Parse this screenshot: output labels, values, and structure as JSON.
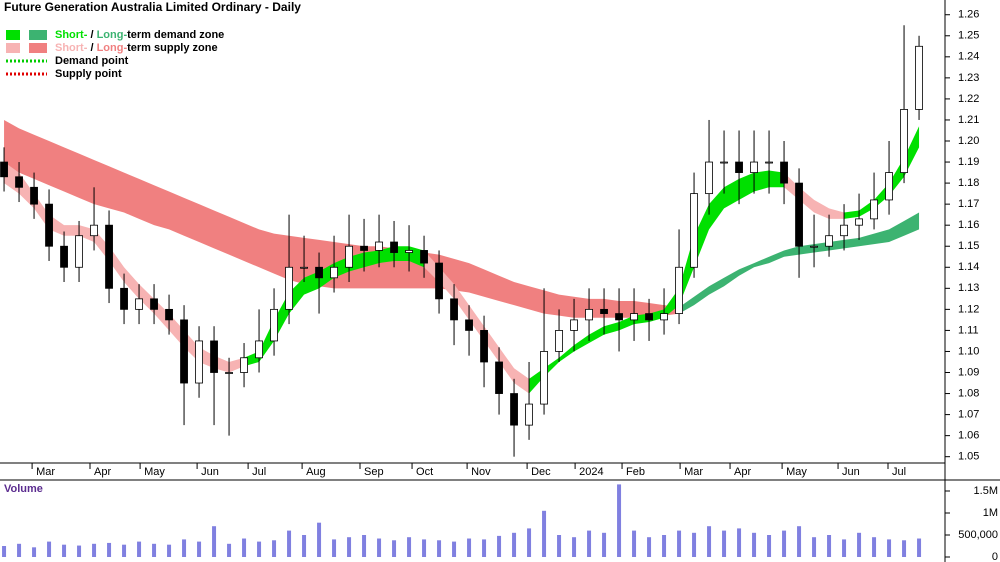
{
  "chart_data": {
    "type": "candlestick",
    "title": "Future Generation Australia Limited Ordinary - Daily",
    "volume_title": "Volume",
    "xlim": [
      -0.27,
      62.73
    ],
    "xticks": [
      {
        "value": 1.87,
        "label": "Mar"
      },
      {
        "value": 5.73,
        "label": "Apr"
      },
      {
        "value": 9.07,
        "label": "May"
      },
      {
        "value": 12.87,
        "label": "Jun"
      },
      {
        "value": 16.27,
        "label": "Jul"
      },
      {
        "value": 19.87,
        "label": "Aug"
      },
      {
        "value": 23.73,
        "label": "Sep"
      },
      {
        "value": 27.2,
        "label": "Oct"
      },
      {
        "value": 30.87,
        "label": "Nov"
      },
      {
        "value": 34.87,
        "label": "Dec"
      },
      {
        "value": 38.07,
        "label": "2024"
      },
      {
        "value": 41.2,
        "label": "Feb"
      },
      {
        "value": 45.07,
        "label": "Mar"
      },
      {
        "value": 48.4,
        "label": "Apr"
      },
      {
        "value": 51.87,
        "label": "May"
      },
      {
        "value": 55.6,
        "label": "Jun"
      },
      {
        "value": 58.93,
        "label": "Jul"
      }
    ],
    "ylim": [
      1.047,
      1.267
    ],
    "yticks": [
      1.05,
      1.06,
      1.07,
      1.08,
      1.09,
      {
        "value": 1.1,
        "label": "1.10"
      },
      1.11,
      1.12,
      1.13,
      1.14,
      1.15,
      1.16,
      1.17,
      1.18,
      1.19,
      {
        "value": 1.2,
        "label": "1.20"
      },
      1.21,
      1.22,
      1.23,
      1.24,
      1.25,
      1.26
    ],
    "up_color": "#ffffff",
    "down_color": "#000000",
    "open": [
      1.19,
      1.183,
      1.178,
      1.17,
      1.15,
      1.14,
      1.155,
      1.16,
      1.13,
      1.12,
      1.125,
      1.12,
      1.115,
      1.085,
      1.105,
      1.09,
      1.09,
      1.097,
      1.105,
      1.12,
      1.14,
      1.14,
      1.135,
      1.14,
      1.15,
      1.148,
      1.152,
      1.147,
      1.148,
      1.142,
      1.125,
      1.115,
      1.11,
      1.095,
      1.08,
      1.065,
      1.075,
      1.1,
      1.11,
      1.115,
      1.12,
      1.118,
      1.115,
      1.118,
      1.115,
      1.118,
      1.14,
      1.175,
      1.19,
      1.19,
      1.185,
      1.19,
      1.19,
      1.18,
      1.15,
      1.15,
      1.155,
      1.16,
      1.163,
      1.172,
      1.185,
      1.215
    ],
    "high": [
      1.197,
      1.19,
      1.185,
      1.177,
      1.157,
      1.162,
      1.178,
      1.167,
      1.137,
      1.132,
      1.132,
      1.127,
      1.122,
      1.112,
      1.112,
      1.097,
      1.104,
      1.12,
      1.13,
      1.165,
      1.155,
      1.147,
      1.155,
      1.165,
      1.163,
      1.165,
      1.162,
      1.16,
      1.155,
      1.148,
      1.132,
      1.122,
      1.117,
      1.102,
      1.087,
      1.095,
      1.13,
      1.12,
      1.125,
      1.13,
      1.13,
      1.13,
      1.13,
      1.125,
      1.13,
      1.158,
      1.185,
      1.21,
      1.205,
      1.205,
      1.205,
      1.205,
      1.2,
      1.187,
      1.165,
      1.165,
      1.17,
      1.175,
      1.185,
      1.2,
      1.255,
      1.25
    ],
    "low": [
      1.176,
      1.171,
      1.163,
      1.143,
      1.133,
      1.133,
      1.148,
      1.123,
      1.113,
      1.113,
      1.113,
      1.108,
      1.065,
      1.078,
      1.065,
      1.06,
      1.083,
      1.09,
      1.098,
      1.113,
      1.133,
      1.118,
      1.128,
      1.133,
      1.138,
      1.14,
      1.14,
      1.138,
      1.135,
      1.118,
      1.103,
      1.098,
      1.083,
      1.07,
      1.05,
      1.058,
      1.07,
      1.095,
      1.1,
      1.105,
      1.108,
      1.1,
      1.105,
      1.105,
      1.108,
      1.113,
      1.135,
      1.165,
      1.175,
      1.17,
      1.175,
      1.175,
      1.17,
      1.135,
      1.14,
      1.145,
      1.148,
      1.153,
      1.158,
      1.165,
      1.18,
      1.21
    ],
    "close": [
      1.183,
      1.178,
      1.17,
      1.15,
      1.14,
      1.155,
      1.16,
      1.13,
      1.12,
      1.125,
      1.12,
      1.115,
      1.085,
      1.105,
      1.09,
      1.09,
      1.097,
      1.105,
      1.12,
      1.14,
      1.14,
      1.135,
      1.14,
      1.15,
      1.148,
      1.152,
      1.147,
      1.148,
      1.142,
      1.125,
      1.115,
      1.11,
      1.095,
      1.08,
      1.065,
      1.075,
      1.1,
      1.11,
      1.115,
      1.12,
      1.118,
      1.115,
      1.118,
      1.115,
      1.118,
      1.14,
      1.175,
      1.19,
      1.19,
      1.185,
      1.19,
      1.19,
      1.18,
      1.15,
      1.15,
      1.155,
      1.16,
      1.163,
      1.172,
      1.185,
      1.215,
      1.245
    ],
    "zones": [
      {
        "color": "#f08080",
        "upper": [
          1.21,
          1.206,
          1.203,
          1.2,
          1.197,
          1.194,
          1.191,
          1.188,
          1.185,
          1.182,
          1.179,
          1.176,
          1.173,
          1.17,
          1.167,
          1.164,
          1.161,
          1.158,
          1.156,
          1.155,
          1.154,
          1.153,
          1.152,
          1.151,
          1.15,
          1.15,
          1.149,
          1.148,
          1.147,
          1.146,
          1.144,
          1.142,
          1.139,
          1.136,
          1.133,
          1.131,
          1.129,
          1.127,
          1.126,
          1.125,
          1.125,
          1.124,
          1.124,
          1.123,
          1.122,
          1.121,
          null,
          null,
          null,
          null,
          null,
          null,
          null,
          null,
          null,
          null,
          null,
          null,
          null,
          null,
          null,
          null
        ],
        "lower": [
          1.188,
          1.185,
          1.182,
          1.179,
          1.176,
          1.173,
          1.17,
          1.168,
          1.166,
          1.163,
          1.16,
          1.158,
          1.155,
          1.152,
          1.149,
          1.146,
          1.143,
          1.14,
          1.137,
          1.134,
          1.132,
          1.131,
          1.13,
          1.13,
          1.13,
          1.13,
          1.13,
          1.13,
          1.13,
          1.13,
          1.129,
          1.128,
          1.126,
          1.124,
          1.122,
          1.12,
          1.118,
          1.117,
          1.116,
          1.116,
          1.116,
          1.116,
          1.116,
          1.116,
          1.117,
          1.118,
          null,
          null,
          null,
          null,
          null,
          null,
          null,
          null,
          null,
          null,
          null,
          null,
          null,
          null,
          null,
          null
        ]
      },
      {
        "color": "#3cb371",
        "upper": [
          null,
          null,
          null,
          null,
          null,
          null,
          null,
          null,
          null,
          null,
          null,
          null,
          null,
          null,
          null,
          null,
          null,
          null,
          null,
          null,
          null,
          null,
          null,
          null,
          null,
          null,
          null,
          null,
          null,
          null,
          null,
          null,
          null,
          null,
          null,
          null,
          null,
          null,
          null,
          null,
          null,
          null,
          null,
          null,
          null,
          1.121,
          1.126,
          1.131,
          1.135,
          1.139,
          1.142,
          1.145,
          1.148,
          1.15,
          1.151,
          1.152,
          1.153,
          1.154,
          1.156,
          1.158,
          1.162,
          1.166
        ],
        "lower": [
          null,
          null,
          null,
          null,
          null,
          null,
          null,
          null,
          null,
          null,
          null,
          null,
          null,
          null,
          null,
          null,
          null,
          null,
          null,
          null,
          null,
          null,
          null,
          null,
          null,
          null,
          null,
          null,
          null,
          null,
          null,
          null,
          null,
          null,
          null,
          null,
          null,
          null,
          null,
          null,
          null,
          null,
          null,
          null,
          null,
          1.118,
          1.122,
          1.127,
          1.131,
          1.136,
          1.14,
          1.142,
          1.145,
          1.146,
          1.147,
          1.148,
          1.149,
          1.15,
          1.151,
          1.152,
          1.155,
          1.158
        ]
      },
      {
        "color": "#f7b3b3",
        "upper": [
          1.19,
          1.185,
          1.175,
          1.165,
          1.16,
          1.16,
          1.158,
          1.15,
          1.14,
          1.132,
          1.125,
          1.118,
          1.11,
          1.102,
          1.098,
          1.095,
          1.097,
          null,
          null,
          null,
          null,
          null,
          null,
          null,
          null,
          null,
          null,
          null,
          1.148,
          1.14,
          1.132,
          1.122,
          1.112,
          1.102,
          1.092,
          1.087,
          null,
          null,
          null,
          null,
          null,
          null,
          null,
          null,
          null,
          null,
          null,
          null,
          null,
          null,
          null,
          null,
          1.185,
          1.178,
          1.172,
          1.168,
          1.166,
          null,
          null,
          null,
          null,
          null
        ],
        "lower": [
          1.18,
          1.175,
          1.168,
          1.158,
          1.155,
          1.155,
          1.152,
          1.143,
          1.133,
          1.125,
          1.118,
          1.11,
          1.102,
          1.095,
          1.092,
          1.09,
          1.093,
          null,
          null,
          null,
          null,
          null,
          null,
          null,
          null,
          null,
          null,
          null,
          1.14,
          1.133,
          1.125,
          1.115,
          1.105,
          1.095,
          1.085,
          1.08,
          null,
          null,
          null,
          null,
          null,
          null,
          null,
          null,
          null,
          null,
          null,
          null,
          null,
          null,
          null,
          null,
          1.178,
          1.172,
          1.166,
          1.163,
          1.163,
          null,
          null,
          null,
          null,
          null
        ]
      },
      {
        "color": "#00e000",
        "upper": [
          null,
          null,
          null,
          null,
          null,
          null,
          null,
          null,
          null,
          null,
          null,
          null,
          null,
          null,
          null,
          null,
          1.097,
          1.1,
          1.115,
          1.128,
          1.135,
          1.138,
          1.142,
          1.145,
          1.147,
          1.148,
          1.15,
          1.15,
          1.148,
          null,
          null,
          null,
          null,
          null,
          null,
          1.087,
          1.092,
          1.097,
          1.103,
          1.108,
          1.112,
          1.114,
          1.117,
          1.118,
          1.12,
          1.13,
          1.155,
          1.17,
          1.178,
          1.182,
          1.185,
          1.186,
          1.185,
          null,
          null,
          null,
          1.166,
          1.167,
          1.172,
          1.18,
          1.192,
          1.207
        ],
        "lower": [
          null,
          null,
          null,
          null,
          null,
          null,
          null,
          null,
          null,
          null,
          null,
          null,
          null,
          null,
          null,
          null,
          1.093,
          1.095,
          1.105,
          1.118,
          1.127,
          1.13,
          1.135,
          1.138,
          1.14,
          1.142,
          1.143,
          1.143,
          1.14,
          null,
          null,
          null,
          null,
          null,
          null,
          1.08,
          1.088,
          1.095,
          1.1,
          1.104,
          1.108,
          1.11,
          1.113,
          1.114,
          1.116,
          1.122,
          1.14,
          1.158,
          1.168,
          1.172,
          1.176,
          1.178,
          1.178,
          null,
          null,
          null,
          1.163,
          1.164,
          1.168,
          1.174,
          1.183,
          1.197
        ]
      }
    ],
    "volume": [
      250000,
      300000,
      220000,
      350000,
      280000,
      260000,
      300000,
      320000,
      280000,
      350000,
      300000,
      280000,
      400000,
      350000,
      700000,
      300000,
      420000,
      350000,
      380000,
      600000,
      500000,
      780000,
      400000,
      450000,
      500000,
      420000,
      380000,
      450000,
      400000,
      380000,
      350000,
      420000,
      400000,
      480000,
      550000,
      650000,
      1050000,
      500000,
      450000,
      600000,
      550000,
      1650000,
      600000,
      450000,
      500000,
      600000,
      550000,
      700000,
      600000,
      650000,
      550000,
      500000,
      600000,
      700000,
      450000,
      500000,
      400000,
      550000,
      450000,
      400000,
      380000,
      420000
    ],
    "volume_color": "#8080e0",
    "volume_ylim": [
      0,
      1750000
    ],
    "volume_yticks": [
      0,
      {
        "value": 500000,
        "label": "500,000"
      },
      {
        "value": 1000000,
        "label": "1M"
      },
      {
        "value": 1500000,
        "label": "1.5M"
      }
    ],
    "legend": [
      {
        "parts": [
          "Short-",
          " / ",
          "Long-",
          "term demand zone"
        ],
        "colors": [
          "#00e000",
          "#3cb371"
        ]
      },
      {
        "parts": [
          "Short-",
          " / ",
          "Long-",
          "term supply zone"
        ],
        "colors": [
          "#f7b3b3",
          "#f08080"
        ]
      },
      {
        "parts": [
          "Demand point"
        ],
        "colors": [
          "#00cc00"
        ]
      },
      {
        "parts": [
          "Supply point"
        ],
        "colors": [
          "#e00000"
        ]
      }
    ]
  }
}
